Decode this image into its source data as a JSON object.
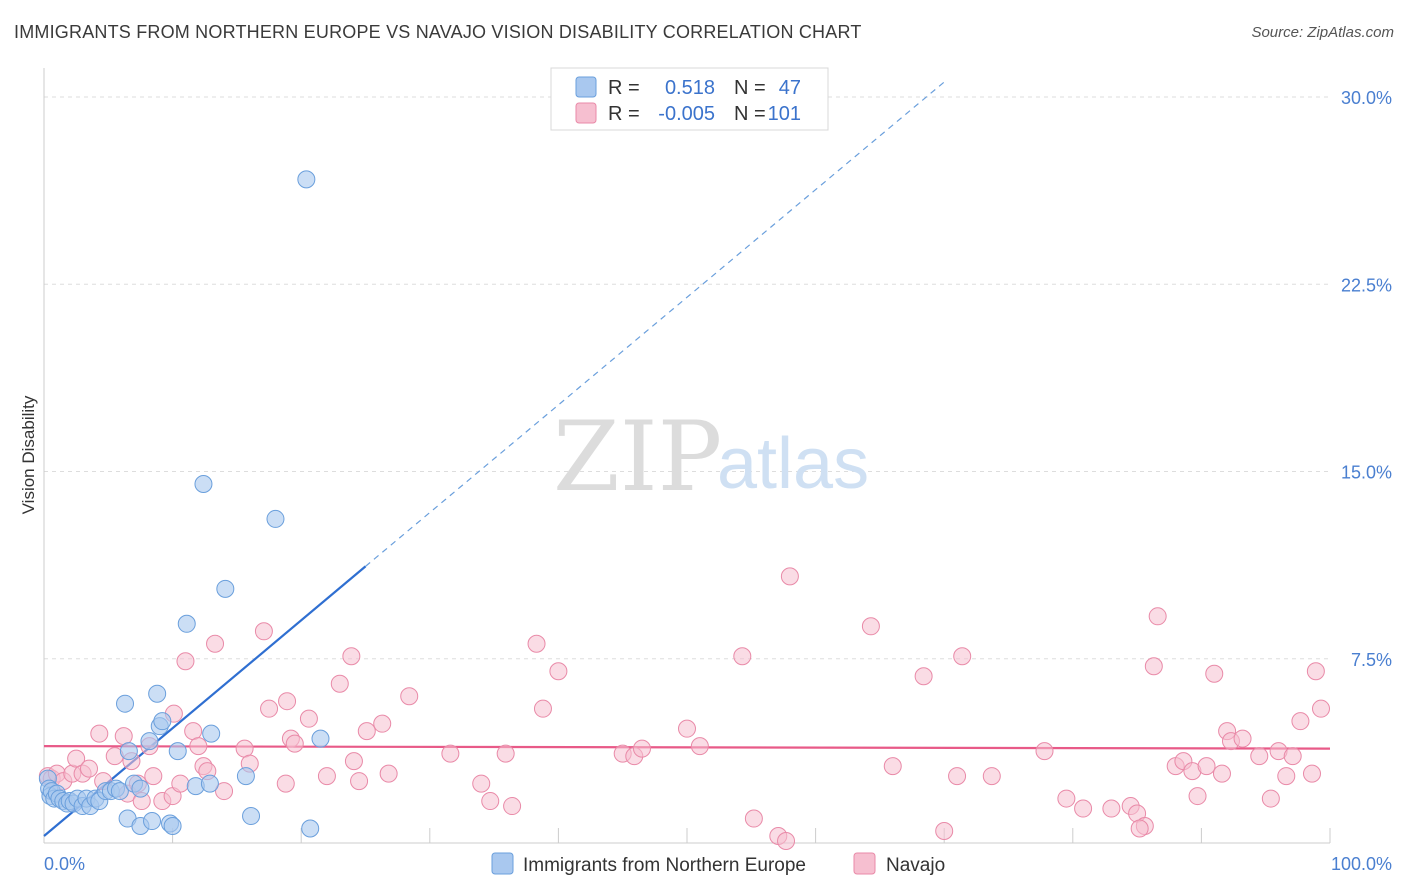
{
  "title": "IMMIGRANTS FROM NORTHERN EUROPE VS NAVAJO VISION DISABILITY CORRELATION CHART",
  "source": "Source: ZipAtlas.com",
  "watermark": {
    "zip": "ZIP",
    "atlas": "atlas"
  },
  "colors": {
    "blue_fill": "#a9c8ef",
    "blue_stroke": "#6a9fdc",
    "blue_line": "#2f6fd1",
    "pink_fill": "#f6bfd0",
    "pink_stroke": "#e98aa8",
    "pink_line": "#e85a88",
    "tick_text": "#4a7fd0",
    "grid": "#dddddd"
  },
  "legend": {
    "rows": [
      {
        "r_label": "R =",
        "r_value": "0.518",
        "n_label": "N =",
        "n_value": "47",
        "series": "blue"
      },
      {
        "r_label": "R =",
        "r_value": "-0.005",
        "n_label": "N =",
        "n_value": "101",
        "series": "pink"
      }
    ]
  },
  "bottom_legend": [
    {
      "label": "Immigrants from Northern Europe",
      "series": "blue"
    },
    {
      "label": "Navajo",
      "series": "pink"
    }
  ],
  "chart_data": {
    "type": "scatter",
    "title": "IMMIGRANTS FROM NORTHERN EUROPE VS NAVAJO VISION DISABILITY CORRELATION CHART",
    "xlabel": "",
    "ylabel": "Vision Disability",
    "xlim": [
      0,
      100
    ],
    "ylim": [
      0,
      31.5
    ],
    "x_tick_labels": [
      {
        "value": 0,
        "label": "0.0%"
      },
      {
        "value": 100,
        "label": "100.0%"
      }
    ],
    "y_ticks": [
      {
        "value": 7.5,
        "label": "7.5%"
      },
      {
        "value": 15.0,
        "label": "15.0%"
      },
      {
        "value": 22.5,
        "label": "22.5%"
      },
      {
        "value": 30.0,
        "label": "30.0%"
      }
    ],
    "x_minor_ticks": [
      10,
      20,
      30,
      40,
      50,
      60,
      70,
      80,
      90,
      100
    ],
    "series": [
      {
        "name": "Immigrants from Northern Europe",
        "color": "blue",
        "r": 0.518,
        "n": 47,
        "trend": {
          "x0": 0,
          "y0": 0.4,
          "x1": 25,
          "y1": 11.2,
          "dash_x1": 70,
          "dash_y1": 30.6
        },
        "points": [
          [
            0.3,
            2.7
          ],
          [
            0.4,
            2.3
          ],
          [
            0.5,
            2.0
          ],
          [
            0.6,
            2.2
          ],
          [
            0.8,
            1.9
          ],
          [
            1.0,
            2.1
          ],
          [
            1.2,
            1.9
          ],
          [
            1.5,
            1.8
          ],
          [
            1.8,
            1.7
          ],
          [
            2.0,
            1.8
          ],
          [
            2.3,
            1.7
          ],
          [
            2.6,
            1.9
          ],
          [
            3.0,
            1.6
          ],
          [
            3.3,
            1.9
          ],
          [
            3.6,
            1.6
          ],
          [
            4.0,
            1.9
          ],
          [
            4.3,
            1.8
          ],
          [
            4.8,
            2.2
          ],
          [
            5.2,
            2.2
          ],
          [
            5.6,
            2.3
          ],
          [
            5.9,
            2.2
          ],
          [
            6.3,
            5.7
          ],
          [
            6.6,
            3.8
          ],
          [
            7.0,
            2.5
          ],
          [
            7.5,
            2.3
          ],
          [
            8.2,
            4.2
          ],
          [
            8.8,
            6.1
          ],
          [
            9.0,
            4.8
          ],
          [
            9.2,
            5.0
          ],
          [
            9.8,
            0.9
          ],
          [
            10.0,
            0.8
          ],
          [
            10.4,
            3.8
          ],
          [
            11.8,
            2.4
          ],
          [
            11.1,
            8.9
          ],
          [
            12.4,
            14.5
          ],
          [
            12.9,
            2.5
          ],
          [
            13.0,
            4.5
          ],
          [
            14.1,
            10.3
          ],
          [
            15.7,
            2.8
          ],
          [
            16.1,
            1.2
          ],
          [
            18.0,
            13.1
          ],
          [
            20.4,
            26.7
          ],
          [
            20.7,
            0.7
          ],
          [
            21.5,
            4.3
          ],
          [
            6.5,
            1.1
          ],
          [
            7.5,
            0.8
          ],
          [
            8.4,
            1.0
          ]
        ]
      },
      {
        "name": "Navajo",
        "color": "pink",
        "r": -0.005,
        "n": 101,
        "trend": {
          "x0": 0,
          "y0": 4.0,
          "x1": 100,
          "y1": 3.9
        },
        "points": [
          [
            0.3,
            2.8
          ],
          [
            0.6,
            2.7
          ],
          [
            1.0,
            2.9
          ],
          [
            1.5,
            2.6
          ],
          [
            2.2,
            2.9
          ],
          [
            2.5,
            3.5
          ],
          [
            3.0,
            2.9
          ],
          [
            3.5,
            3.1
          ],
          [
            4.3,
            4.5
          ],
          [
            4.6,
            2.6
          ],
          [
            5.5,
            3.6
          ],
          [
            6.2,
            4.4
          ],
          [
            6.5,
            2.1
          ],
          [
            6.8,
            3.4
          ],
          [
            7.3,
            2.5
          ],
          [
            7.6,
            1.8
          ],
          [
            8.2,
            4.0
          ],
          [
            8.5,
            2.8
          ],
          [
            9.2,
            1.8
          ],
          [
            10.0,
            2.0
          ],
          [
            10.1,
            5.3
          ],
          [
            10.6,
            2.5
          ],
          [
            11.0,
            7.4
          ],
          [
            11.6,
            4.6
          ],
          [
            12.0,
            4.0
          ],
          [
            12.4,
            3.2
          ],
          [
            12.7,
            3.0
          ],
          [
            13.3,
            8.1
          ],
          [
            14.0,
            2.2
          ],
          [
            15.6,
            3.9
          ],
          [
            16.0,
            3.3
          ],
          [
            17.1,
            8.6
          ],
          [
            17.5,
            5.5
          ],
          [
            18.8,
            2.5
          ],
          [
            18.9,
            5.8
          ],
          [
            19.2,
            4.3
          ],
          [
            19.5,
            4.1
          ],
          [
            20.6,
            5.1
          ],
          [
            22.0,
            2.8
          ],
          [
            23.0,
            6.5
          ],
          [
            23.9,
            7.6
          ],
          [
            24.1,
            3.4
          ],
          [
            24.5,
            2.6
          ],
          [
            25.1,
            4.6
          ],
          [
            26.3,
            4.9
          ],
          [
            26.8,
            2.9
          ],
          [
            28.4,
            6.0
          ],
          [
            31.6,
            3.7
          ],
          [
            34.0,
            2.5
          ],
          [
            34.7,
            1.8
          ],
          [
            35.9,
            3.7
          ],
          [
            36.4,
            1.6
          ],
          [
            38.3,
            8.1
          ],
          [
            38.8,
            5.5
          ],
          [
            40.0,
            7.0
          ],
          [
            45.0,
            3.7
          ],
          [
            45.9,
            3.6
          ],
          [
            46.5,
            3.9
          ],
          [
            50.0,
            4.7
          ],
          [
            51.0,
            4.0
          ],
          [
            54.3,
            7.6
          ],
          [
            55.2,
            1.1
          ],
          [
            57.1,
            0.4
          ],
          [
            57.7,
            0.2
          ],
          [
            58.0,
            10.8
          ],
          [
            64.3,
            8.8
          ],
          [
            66.0,
            3.2
          ],
          [
            68.4,
            6.8
          ],
          [
            70.0,
            0.6
          ],
          [
            71.0,
            2.8
          ],
          [
            71.4,
            7.6
          ],
          [
            73.7,
            2.8
          ],
          [
            77.8,
            3.8
          ],
          [
            79.5,
            1.9
          ],
          [
            80.8,
            1.5
          ],
          [
            83.0,
            1.5
          ],
          [
            84.5,
            1.6
          ],
          [
            85.0,
            1.3
          ],
          [
            85.6,
            0.8
          ],
          [
            85.2,
            0.7
          ],
          [
            86.3,
            7.2
          ],
          [
            86.6,
            9.2
          ],
          [
            88.0,
            3.2
          ],
          [
            88.6,
            3.4
          ],
          [
            89.3,
            3.0
          ],
          [
            89.7,
            2.0
          ],
          [
            90.4,
            3.2
          ],
          [
            91.0,
            6.9
          ],
          [
            91.6,
            2.9
          ],
          [
            92.0,
            4.6
          ],
          [
            92.3,
            4.2
          ],
          [
            93.2,
            4.3
          ],
          [
            94.5,
            3.6
          ],
          [
            95.4,
            1.9
          ],
          [
            96.0,
            3.8
          ],
          [
            96.6,
            2.8
          ],
          [
            97.1,
            3.6
          ],
          [
            97.7,
            5.0
          ],
          [
            98.6,
            2.9
          ],
          [
            98.9,
            7.0
          ],
          [
            99.3,
            5.5
          ]
        ]
      }
    ]
  }
}
